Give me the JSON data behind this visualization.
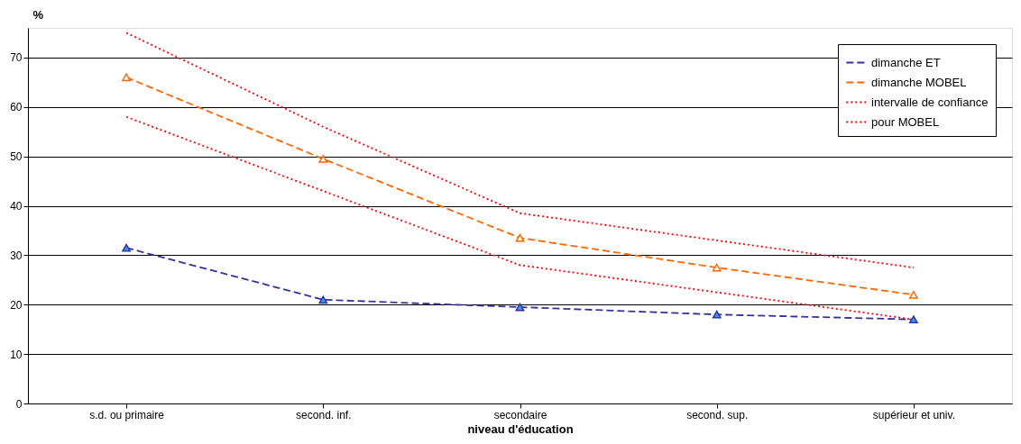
{
  "chart_data": {
    "type": "line",
    "ylabel": "%",
    "xlabel": "niveau d'éducation",
    "categories": [
      "s.d. ou primaire",
      "second. inf.",
      "secondaire",
      "second. sup.",
      "supérieur et univ."
    ],
    "series": [
      {
        "name": "dimanche ET",
        "color": "#333399",
        "values": [
          31.5,
          21,
          19.5,
          18,
          17
        ],
        "marker": "triangle",
        "line_style": "dashed"
      },
      {
        "name": "dimanche MOBEL",
        "color": "#ff6600",
        "values": [
          66,
          49.5,
          33.5,
          27.5,
          22
        ],
        "marker": "triangle",
        "line_style": "dashed"
      },
      {
        "name": "intervalle de confiance",
        "color": "#ff0000",
        "values": [
          75,
          56,
          38.5,
          33,
          27.5
        ],
        "marker": "none",
        "line_style": "dotted"
      },
      {
        "name": "pour MOBEL",
        "color": "#ff0000",
        "values": [
          58,
          43,
          28,
          22.5,
          17
        ],
        "marker": "none",
        "line_style": "dotted"
      }
    ],
    "ylim": [
      0,
      76
    ],
    "yticks": [
      0,
      10,
      20,
      30,
      40,
      50,
      60,
      70
    ],
    "grid": "y",
    "legend": "top right"
  }
}
